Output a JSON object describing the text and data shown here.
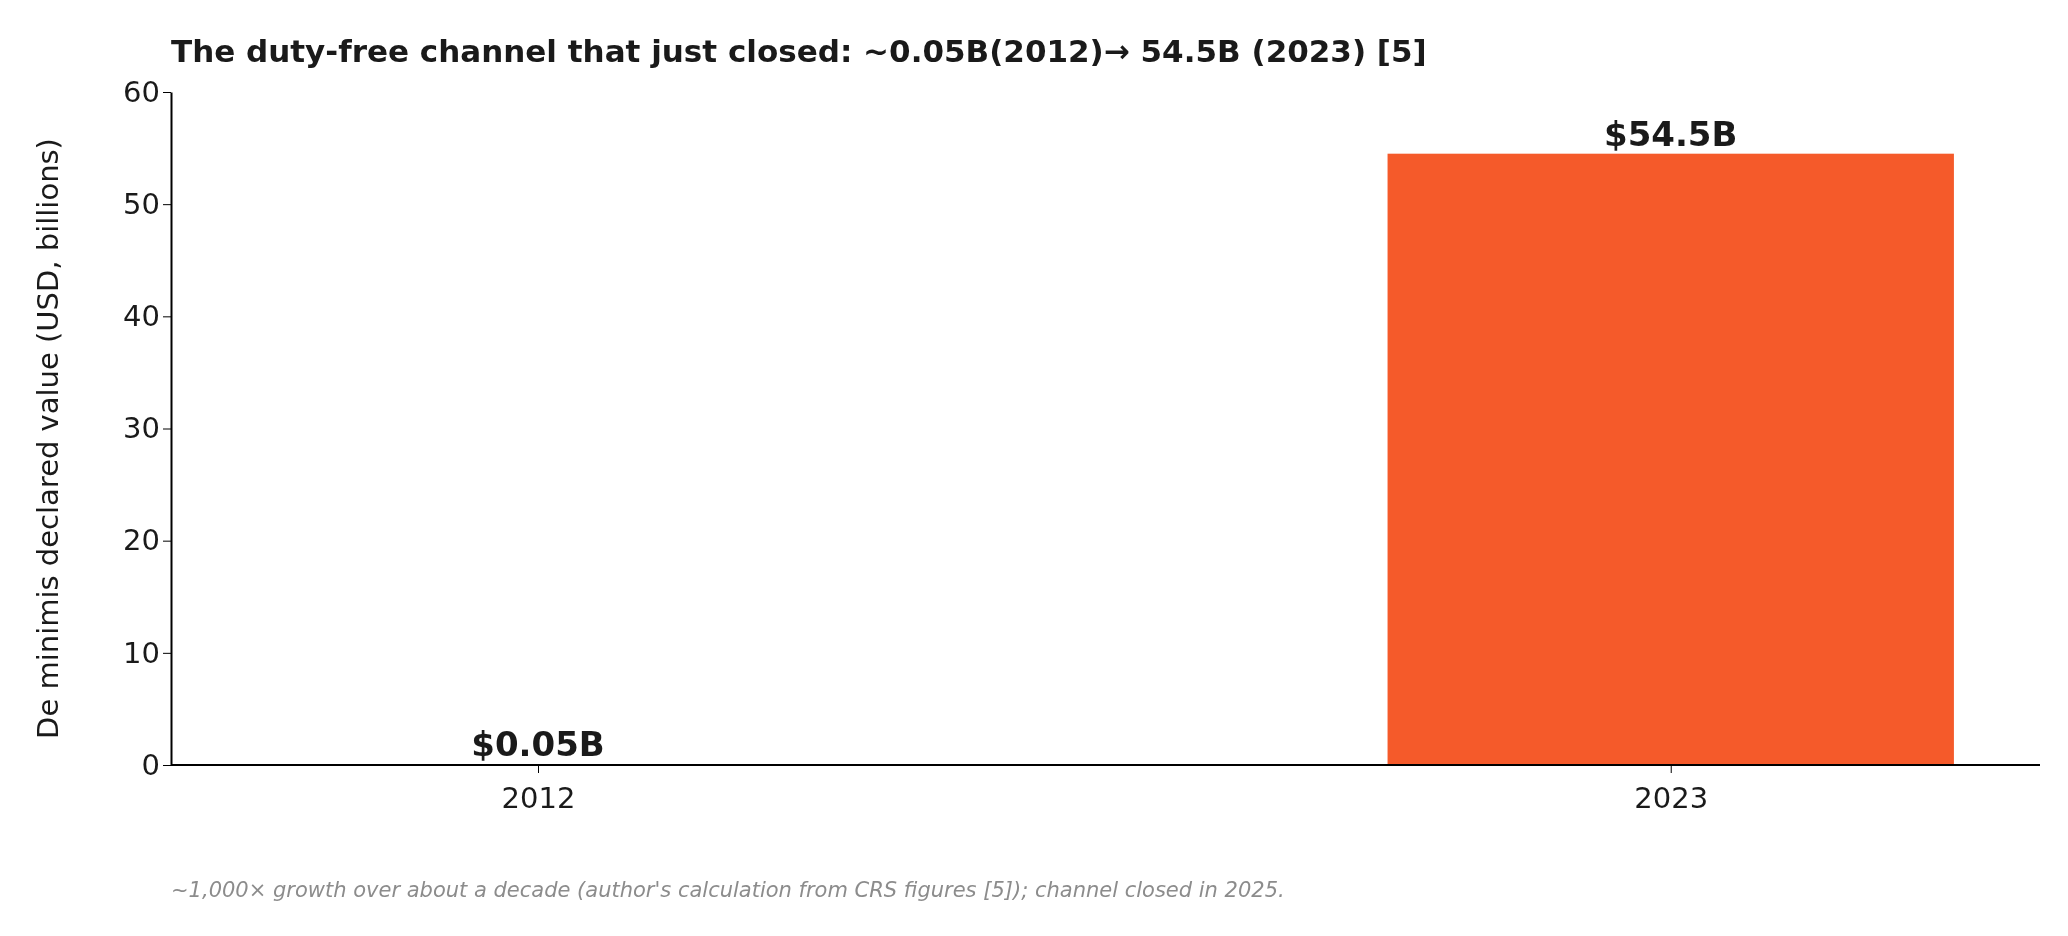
{
  "chart_data": {
    "type": "bar",
    "title": "The duty-free channel that just closed: ~0.05B(2012)→ 54.5B (2023) [5]",
    "ylabel": "De minimis declared value (USD, billions)",
    "categories": [
      "2012",
      "2023"
    ],
    "values": [
      0.05,
      54.5
    ],
    "color": "#f55a2a",
    "value_labels": [
      "$0.05B",
      "$54.5B"
    ],
    "ylim": [
      0,
      60
    ],
    "yticks": [
      0,
      10,
      20,
      30,
      40,
      50,
      60
    ],
    "grid": false,
    "annotations": [
      "~1,000× growth over about a decade (author's calculation from CRS figures [5]); channel closed in 2025."
    ]
  }
}
